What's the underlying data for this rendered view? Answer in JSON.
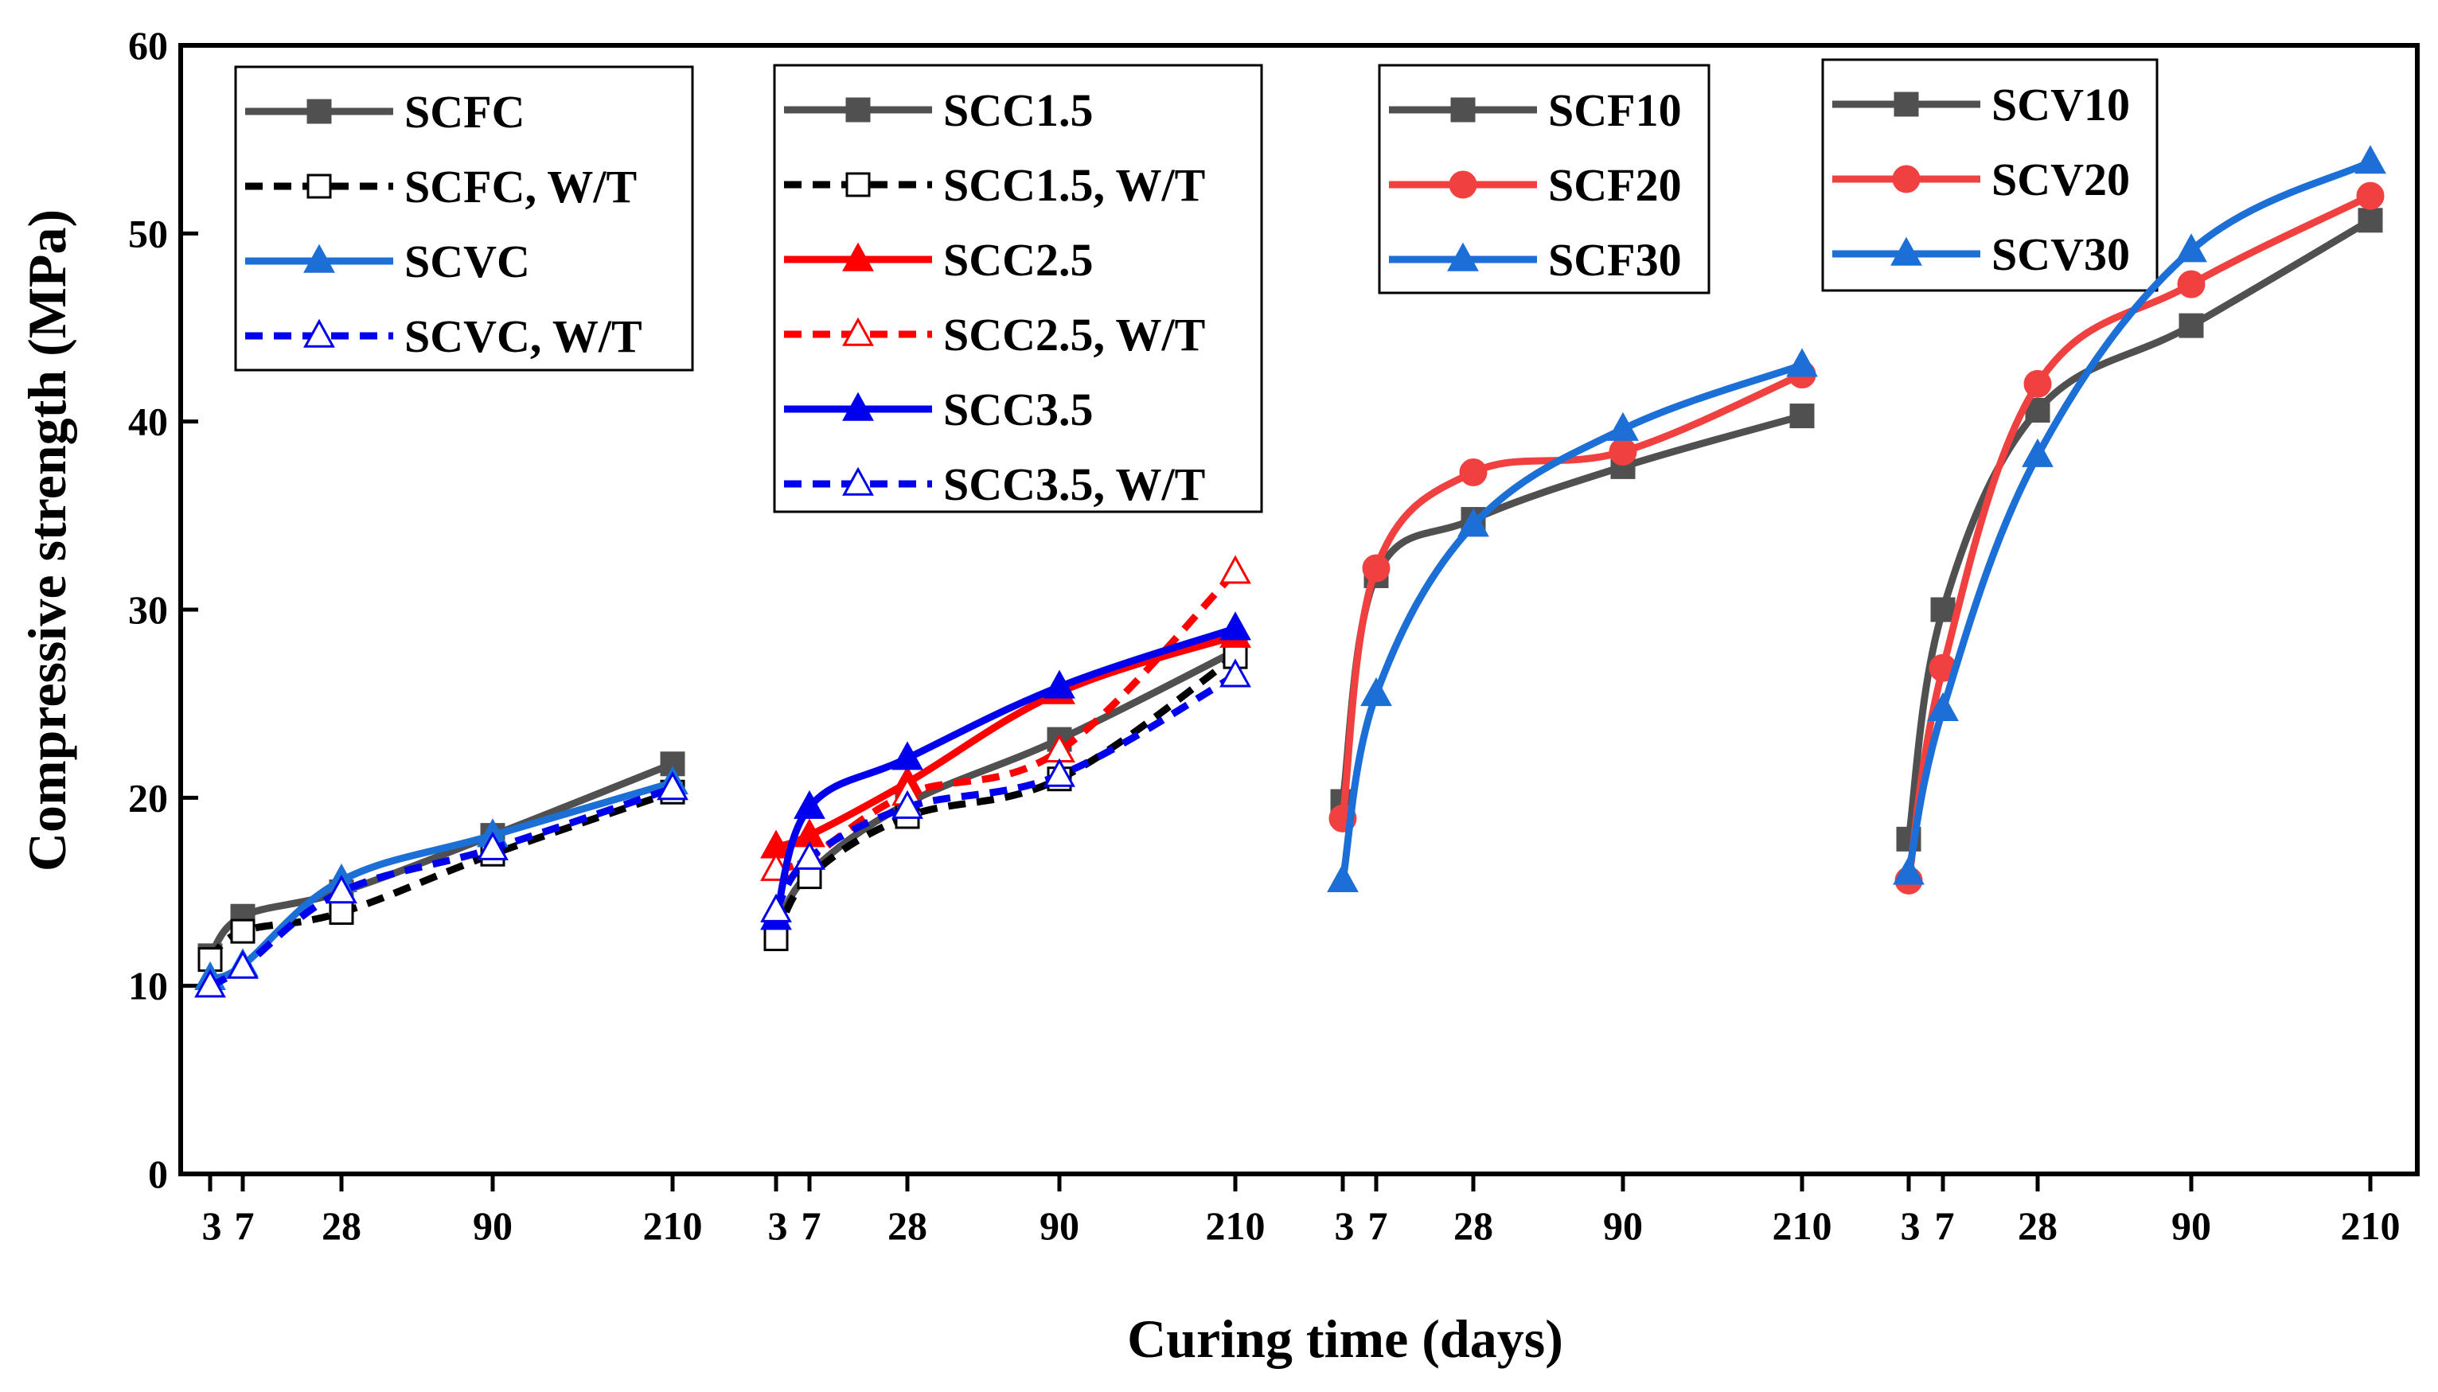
{
  "chart_data": {
    "type": "line",
    "xlabel": "Curing time (days)",
    "ylabel": "Compressive strength (MPa)",
    "ylim": [
      0,
      60
    ],
    "yticks": [
      0,
      10,
      20,
      30,
      40,
      50,
      60
    ],
    "grid": false,
    "groups": [
      {
        "name": "group-1",
        "ticks": [
          "3",
          "7",
          "28",
          "90",
          "210"
        ],
        "legend_position": "top-left of panel",
        "series": [
          {
            "name": "SCFC",
            "color": "#505050",
            "dash": "solid",
            "marker": "square",
            "filled": true,
            "values": [
              11.6,
              13.7,
              15.0,
              18.0,
              21.8
            ]
          },
          {
            "name": "SCFC, W/T",
            "color": "#000000",
            "dash": "dashed",
            "marker": "square",
            "filled": false,
            "values": [
              11.4,
              12.9,
              13.9,
              17.0,
              20.3
            ]
          },
          {
            "name": "SCVC",
            "color": "#1c6fd6",
            "dash": "solid",
            "marker": "triangle",
            "filled": true,
            "values": [
              10.4,
              11.1,
              15.6,
              18.0,
              20.8
            ]
          },
          {
            "name": "SCVC, W/T",
            "color": "#0000ee",
            "dash": "dashed",
            "marker": "triangle",
            "filled": false,
            "values": [
              10.0,
              11.0,
              15.0,
              17.3,
              20.5
            ]
          }
        ]
      },
      {
        "name": "group-2",
        "ticks": [
          "3",
          "7",
          "28",
          "90",
          "210"
        ],
        "legend_position": "top of panel",
        "series": [
          {
            "name": "SCC1.5",
            "color": "#505050",
            "dash": "solid",
            "marker": "square",
            "filled": true,
            "values": [
              13.0,
              16.0,
              19.7,
              23.1,
              27.8
            ]
          },
          {
            "name": "SCC1.5, W/T",
            "color": "#000000",
            "dash": "dashed",
            "marker": "square",
            "filled": false,
            "values": [
              12.5,
              15.8,
              19.0,
              21.0,
              27.5
            ]
          },
          {
            "name": "SCC2.5",
            "color": "#ff0000",
            "dash": "solid",
            "marker": "triangle",
            "filled": true,
            "values": [
              17.4,
              18.0,
              20.8,
              25.6,
              28.6
            ]
          },
          {
            "name": "SCC2.5, W/T",
            "color": "#ff0000",
            "dash": "dashed",
            "marker": "triangle",
            "filled": false,
            "values": [
              16.2,
              16.8,
              20.2,
              22.5,
              32.0
            ]
          },
          {
            "name": "SCC3.5",
            "color": "#0000ee",
            "dash": "solid",
            "marker": "triangle",
            "filled": true,
            "values": [
              13.6,
              19.5,
              22.1,
              25.9,
              29.0
            ]
          },
          {
            "name": "SCC3.5, W/T",
            "color": "#0000ee",
            "dash": "dashed",
            "marker": "triangle",
            "filled": false,
            "values": [
              14.0,
              16.8,
              19.5,
              21.2,
              26.5
            ]
          }
        ]
      },
      {
        "name": "group-3",
        "ticks": [
          "3",
          "7",
          "28",
          "90",
          "210"
        ],
        "legend_position": "top of panel",
        "series": [
          {
            "name": "SCF10",
            "color": "#505050",
            "dash": "solid",
            "marker": "square",
            "filled": true,
            "values": [
              19.8,
              31.8,
              34.8,
              37.6,
              40.3
            ]
          },
          {
            "name": "SCF20",
            "color": "#f04040",
            "dash": "solid",
            "marker": "circle",
            "filled": true,
            "values": [
              18.9,
              32.2,
              37.3,
              38.4,
              42.5
            ]
          },
          {
            "name": "SCF30",
            "color": "#1c6fd6",
            "dash": "solid",
            "marker": "triangle",
            "filled": true,
            "values": [
              15.6,
              25.5,
              34.5,
              39.6,
              43.0
            ]
          }
        ]
      },
      {
        "name": "group-4",
        "ticks": [
          "3",
          "7",
          "28",
          "90",
          "210"
        ],
        "legend_position": "top-right of panel",
        "series": [
          {
            "name": "SCV10",
            "color": "#505050",
            "dash": "solid",
            "marker": "square",
            "filled": true,
            "values": [
              17.8,
              30.0,
              40.6,
              45.1,
              50.7
            ]
          },
          {
            "name": "SCV20",
            "color": "#f04040",
            "dash": "solid",
            "marker": "circle",
            "filled": true,
            "values": [
              15.6,
              26.9,
              42.0,
              47.3,
              52.0
            ]
          },
          {
            "name": "SCV30",
            "color": "#1c6fd6",
            "dash": "solid",
            "marker": "triangle",
            "filled": true,
            "values": [
              16.0,
              24.7,
              38.2,
              49.1,
              53.8
            ]
          }
        ]
      }
    ]
  }
}
